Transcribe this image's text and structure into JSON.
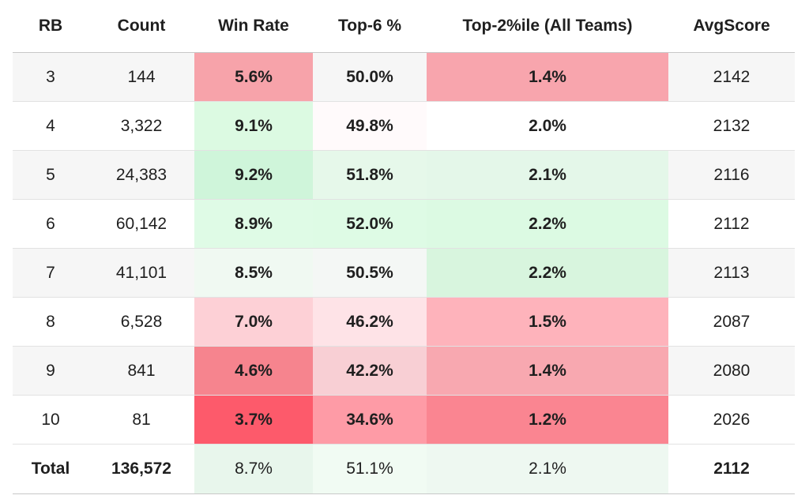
{
  "chart_data": {
    "type": "table",
    "columns": [
      "RB",
      "Count",
      "Win Rate",
      "Top-6 %",
      "Top-2%ile (All Teams)",
      "AvgScore"
    ],
    "rows": [
      {
        "rb": "3",
        "count": "144",
        "win_rate": "5.6%",
        "top6": "50.0%",
        "top2": "1.4%",
        "avg": "2142"
      },
      {
        "rb": "4",
        "count": "3,322",
        "win_rate": "9.1%",
        "top6": "49.8%",
        "top2": "2.0%",
        "avg": "2132"
      },
      {
        "rb": "5",
        "count": "24,383",
        "win_rate": "9.2%",
        "top6": "51.8%",
        "top2": "2.1%",
        "avg": "2116"
      },
      {
        "rb": "6",
        "count": "60,142",
        "win_rate": "8.9%",
        "top6": "52.0%",
        "top2": "2.2%",
        "avg": "2112"
      },
      {
        "rb": "7",
        "count": "41,101",
        "win_rate": "8.5%",
        "top6": "50.5%",
        "top2": "2.2%",
        "avg": "2113"
      },
      {
        "rb": "8",
        "count": "6,528",
        "win_rate": "7.0%",
        "top6": "46.2%",
        "top2": "1.5%",
        "avg": "2087"
      },
      {
        "rb": "9",
        "count": "841",
        "win_rate": "4.6%",
        "top6": "42.2%",
        "top2": "1.4%",
        "avg": "2080"
      },
      {
        "rb": "10",
        "count": "81",
        "win_rate": "3.7%",
        "top6": "34.6%",
        "top2": "1.2%",
        "avg": "2026"
      }
    ],
    "total": {
      "rb": "Total",
      "count": "136,572",
      "win_rate": "8.7%",
      "top6": "51.1%",
      "top2": "2.1%",
      "avg": "2112"
    },
    "cell_colors": {
      "win_rate": [
        "#f7a3aa",
        "#dcfae2",
        "#cff5da",
        "#dffbe6",
        "#f0f9f2",
        "#fdd0d6",
        "#f6848e",
        "#fd5a6b"
      ],
      "top6": [
        "#f6f6f6",
        "#fffafb",
        "#e6f8ea",
        "#defbe5",
        "#f4f7f5",
        "#fee3e7",
        "#f8cfd4",
        "#fe9ba6"
      ],
      "top2": [
        "#f8a5ad",
        "#ffffff",
        "#e4f7e9",
        "#dcfae3",
        "#d8f5de",
        "#feb3bb",
        "#f8a8b0",
        "#fa8591"
      ],
      "total_win_rate": "#e8f6ec",
      "total_top6": "#f1fbf3",
      "total_top2": "#eef8f1"
    }
  }
}
